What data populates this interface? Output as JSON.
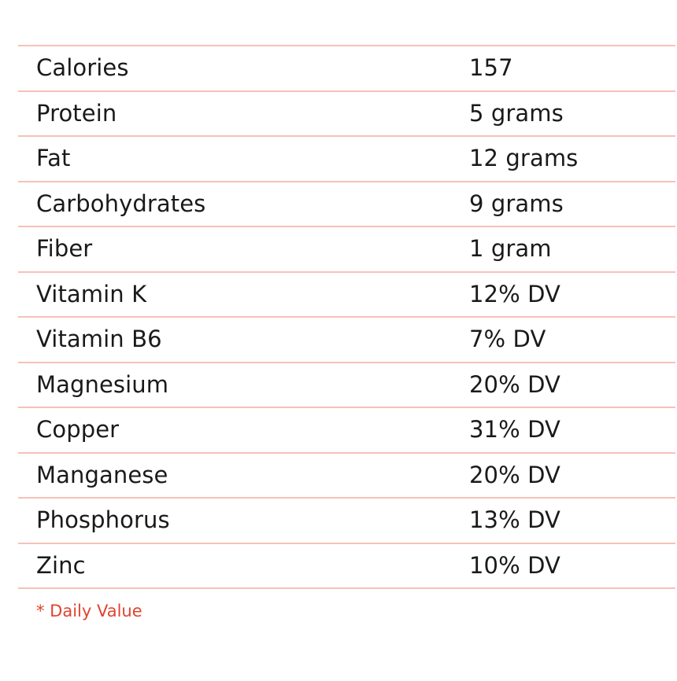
{
  "rows": [
    {
      "name": "Calories",
      "value": "157"
    },
    {
      "name": "Protein",
      "value": "5 grams"
    },
    {
      "name": "Fat",
      "value": "12 grams"
    },
    {
      "name": "Carbohydrates",
      "value": "9 grams"
    },
    {
      "name": "Fiber",
      "value": "1 gram"
    },
    {
      "name": "Vitamin K",
      "value": "12% DV"
    },
    {
      "name": "Vitamin B6",
      "value": "7% DV"
    },
    {
      "name": "Magnesium",
      "value": "20% DV"
    },
    {
      "name": "Copper",
      "value": "31% DV"
    },
    {
      "name": "Manganese",
      "value": "20% DV"
    },
    {
      "name": "Phosphorus",
      "value": "13% DV"
    },
    {
      "name": "Zinc",
      "value": "10% DV"
    }
  ],
  "footnote": "* Daily Value",
  "colors": {
    "divider": "#f6c1b8",
    "text": "#1a1a1a",
    "footnote": "#e0442f"
  }
}
